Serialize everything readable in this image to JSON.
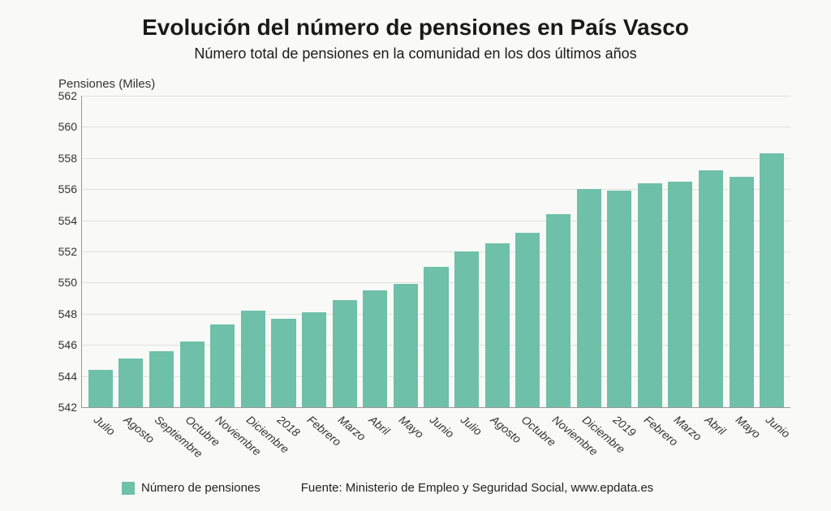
{
  "chart": {
    "type": "bar",
    "title": "Evolución del número de pensiones en País Vasco",
    "title_fontsize": 28,
    "subtitle": "Número total de pensiones en la comunidad en los dos últimos años",
    "subtitle_fontsize": 18,
    "ylabel": "Pensiones (Miles)",
    "ylabel_fontsize": 15,
    "background_color": "#f9f9f7",
    "grid_color": "#e0e0dc",
    "axis_color": "#999999",
    "text_color": "#1a1a1a",
    "bar_color": "#6ec0a8",
    "bar_width": 0.8,
    "ylim": [
      542,
      562
    ],
    "ytick_step": 2,
    "yticks": [
      542,
      544,
      546,
      548,
      550,
      552,
      554,
      556,
      558,
      560,
      562
    ],
    "tick_fontsize": 14,
    "xlabel_fontsize": 14,
    "xlabel_rotation": 40,
    "categories": [
      "Julio",
      "Agosto",
      "Septiembre",
      "Octubre",
      "Noviembre",
      "Diciembre",
      "2018",
      "Febrero",
      "Marzo",
      "Abril",
      "Mayo",
      "Junio",
      "Julio",
      "Agosto",
      "Octubre",
      "Noviembre",
      "Diciembre",
      "2019",
      "Febrero",
      "Marzo",
      "Abril",
      "Mayo",
      "Junio"
    ],
    "values": [
      544.4,
      545.1,
      545.6,
      546.2,
      547.3,
      548.2,
      547.7,
      548.1,
      548.9,
      549.5,
      549.9,
      551.0,
      552.0,
      552.5,
      553.2,
      554.4,
      556.0,
      555.9,
      556.4,
      556.5,
      557.2,
      556.8,
      558.3
    ],
    "legend": {
      "label": "Número de pensiones",
      "swatch_color": "#6ec0a8",
      "fontsize": 15
    },
    "source": {
      "label": "Fuente: Ministerio de Empleo y Seguridad Social, www.epdata.es",
      "fontsize": 15
    }
  }
}
